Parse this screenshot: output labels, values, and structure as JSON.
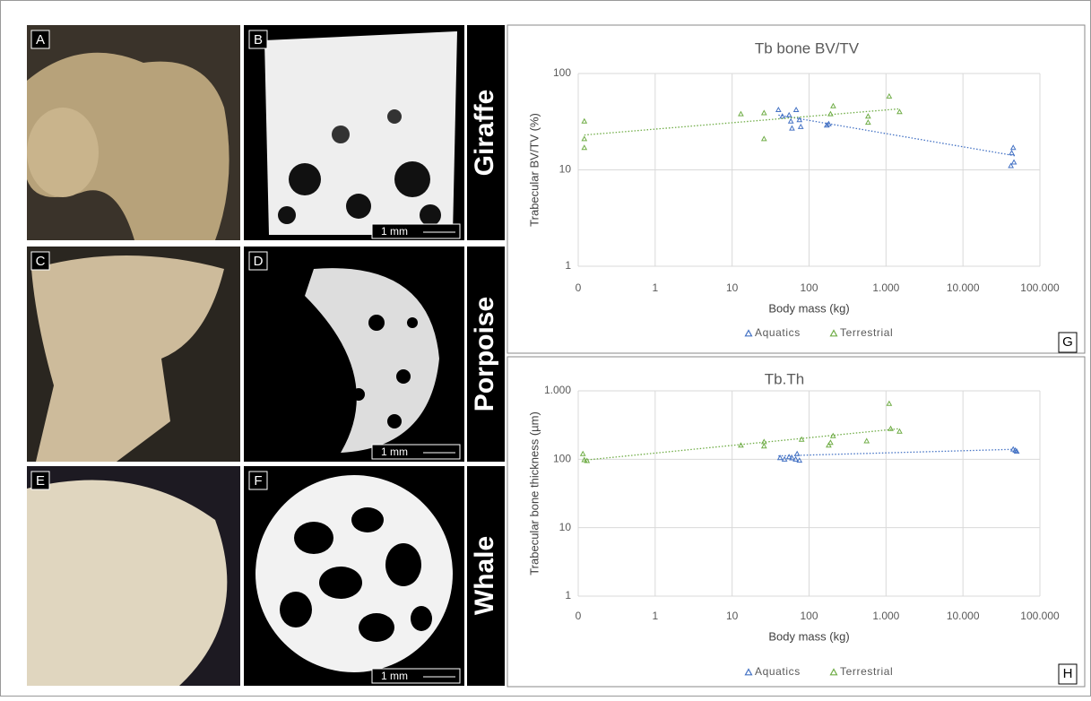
{
  "figure": {
    "panels": [
      "A",
      "B",
      "C",
      "D",
      "E",
      "F"
    ],
    "rows": [
      "Giraffe",
      "Porpoise",
      "Whale"
    ],
    "scale_bars": [
      "1 mm",
      "1 mm",
      "1 mm"
    ]
  },
  "chart_data": [
    {
      "type": "scatter",
      "panel": "G",
      "title": "Tb bone  BV/TV",
      "x_label": "Body mass (kg)",
      "y_label": "Trabecular BV/TV (%)",
      "log_x": true,
      "log_y": true,
      "grid": true,
      "legend": "bottom",
      "xlim": [
        0.1,
        100000
      ],
      "xticks": [
        {
          "value": 0.1,
          "label": "0"
        },
        1,
        10,
        100,
        {
          "value": 1000,
          "label": "1.000"
        },
        {
          "value": 10000,
          "label": "10.000"
        },
        {
          "value": 100000,
          "label": "100.000"
        }
      ],
      "ylim": [
        1,
        100
      ],
      "yticks": [
        1,
        10,
        100
      ],
      "series": [
        {
          "name": "Aquatics",
          "color": "#4472c4",
          "x": [
            40,
            45,
            55,
            58,
            60,
            68,
            75,
            78,
            170,
            180,
            45000,
            43000,
            46000,
            42000
          ],
          "values": [
            42,
            36,
            37,
            32,
            27,
            42,
            33,
            28,
            29,
            30,
            17,
            15,
            12,
            11
          ],
          "trend_x": [
            40,
            48000
          ],
          "trend_y": [
            37,
            14
          ]
        },
        {
          "name": "Terrestrial",
          "color": "#70ad47",
          "x": [
            0.12,
            0.12,
            0.12,
            13,
            26,
            26,
            190,
            206,
            585,
            585,
            1100,
            1500
          ],
          "values": [
            32,
            21,
            17,
            38,
            39,
            21,
            38,
            46,
            36,
            31,
            58,
            40
          ],
          "trend_x": [
            0.12,
            1500
          ],
          "trend_y": [
            23,
            43
          ]
        }
      ]
    },
    {
      "type": "scatter",
      "panel": "H",
      "title": "Tb.Th",
      "x_label": "Body mass (kg)",
      "y_label": "Trabecular bone thickness (µm)",
      "log_x": true,
      "log_y": true,
      "grid": true,
      "legend": "bottom",
      "xlim": [
        0.1,
        100000
      ],
      "xticks": [
        {
          "value": 0.1,
          "label": "0"
        },
        1,
        10,
        100,
        {
          "value": 1000,
          "label": "1.000"
        },
        {
          "value": 10000,
          "label": "10.000"
        },
        {
          "value": 100000,
          "label": "100.000"
        }
      ],
      "ylim": [
        1,
        1000
      ],
      "yticks": [
        1,
        10,
        100,
        {
          "value": 1000,
          "label": "1.000"
        }
      ],
      "series": [
        {
          "name": "Aquatics",
          "color": "#4472c4",
          "x": [
            42,
            48,
            55,
            60,
            67,
            70,
            75,
            45000,
            48000,
            50000
          ],
          "values": [
            105,
            100,
            108,
            104,
            100,
            120,
            96,
            140,
            135,
            130
          ],
          "trend_x": [
            40,
            48000
          ],
          "trend_y": [
            112,
            140
          ]
        },
        {
          "name": "Terrestrial",
          "color": "#70ad47",
          "x": [
            0.115,
            0.12,
            0.13,
            13,
            26,
            26,
            80,
            180,
            190,
            205,
            560,
            1100,
            1150,
            1500
          ],
          "values": [
            120,
            98,
            95,
            160,
            180,
            155,
            195,
            160,
            175,
            220,
            185,
            650,
            280,
            255
          ],
          "trend_x": [
            0.12,
            1500
          ],
          "trend_y": [
            97,
            280
          ]
        }
      ]
    }
  ]
}
